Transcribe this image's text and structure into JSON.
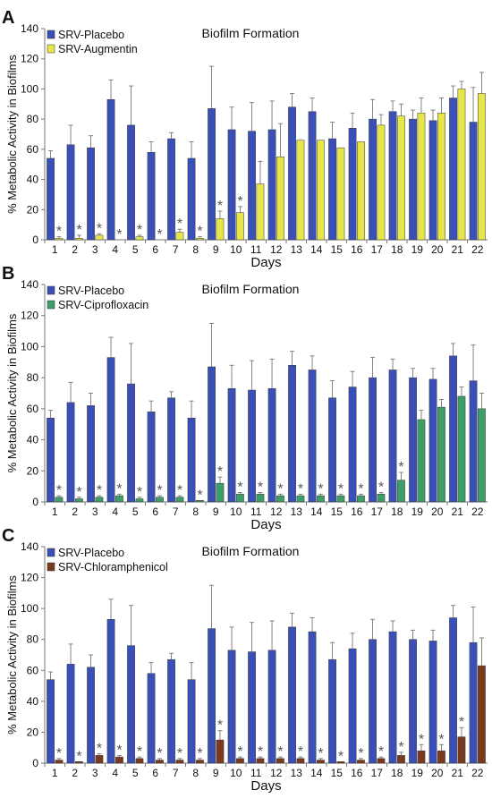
{
  "colors": {
    "placebo": "#3A50B8",
    "axis": "#777777",
    "error": "#777777",
    "text": "#111111"
  },
  "chart_data": [
    {
      "panel_label": "A",
      "type": "bar",
      "title": "Biofilm Formation",
      "xlabel": "Days",
      "ylabel": "% Metabolic Activity in Biofilms",
      "ylim": [
        0,
        140
      ],
      "yticks": [
        0,
        20,
        40,
        60,
        80,
        100,
        120,
        140
      ],
      "legend_placement": "top-left",
      "categories": [
        "1",
        "2",
        "3",
        "4",
        "5",
        "6",
        "7",
        "8",
        "9",
        "10",
        "11",
        "12",
        "13",
        "14",
        "15",
        "16",
        "17",
        "18",
        "19",
        "20",
        "21",
        "22"
      ],
      "series": [
        {
          "name": "SRV-Placebo",
          "color": "#3A50B8",
          "values": [
            54,
            63,
            61,
            93,
            76,
            58,
            67,
            54,
            87,
            73,
            72,
            73,
            88,
            85,
            67,
            74,
            80,
            85,
            80,
            79,
            94,
            78
          ],
          "errors": [
            5,
            13,
            8,
            13,
            26,
            7,
            4,
            11,
            28,
            15,
            19,
            19,
            9,
            9,
            11,
            10,
            13,
            7,
            6,
            7,
            8,
            23
          ]
        },
        {
          "name": "SRV-Augmentin",
          "color": "#E6E64A",
          "values": [
            1,
            1,
            3,
            0,
            2,
            0,
            5,
            1,
            14,
            18,
            37,
            55,
            66,
            66,
            61,
            65,
            76,
            82,
            84,
            84,
            100,
            97
          ],
          "errors": [
            1,
            2,
            1,
            0,
            1,
            0,
            2,
            1,
            5,
            4,
            15,
            22,
            0,
            0,
            0,
            0,
            7,
            8,
            10,
            10,
            5,
            14
          ]
        }
      ],
      "star_days": [
        1,
        2,
        3,
        4,
        5,
        6,
        7,
        8,
        9,
        10
      ]
    },
    {
      "panel_label": "B",
      "type": "bar",
      "title": "Biofilm Formation",
      "xlabel": "Days",
      "ylabel": "% Metabolic Activity in Biofilms",
      "ylim": [
        0,
        140
      ],
      "yticks": [
        0,
        20,
        40,
        60,
        80,
        100,
        120,
        140
      ],
      "legend_placement": "top-left",
      "categories": [
        "1",
        "2",
        "3",
        "4",
        "5",
        "6",
        "7",
        "8",
        "9",
        "10",
        "11",
        "12",
        "13",
        "14",
        "15",
        "16",
        "17",
        "18",
        "19",
        "20",
        "21",
        "22"
      ],
      "series": [
        {
          "name": "SRV-Placebo",
          "color": "#3A50B8",
          "values": [
            54,
            64,
            62,
            93,
            76,
            58,
            67,
            54,
            87,
            73,
            72,
            73,
            88,
            85,
            67,
            74,
            80,
            85,
            80,
            79,
            94,
            78
          ],
          "errors": [
            5,
            13,
            8,
            13,
            26,
            7,
            4,
            11,
            28,
            15,
            19,
            19,
            9,
            9,
            11,
            10,
            13,
            7,
            6,
            7,
            8,
            23
          ]
        },
        {
          "name": "SRV-Ciprofloxacin",
          "color": "#3E9E68",
          "values": [
            3,
            2,
            3,
            4,
            2,
            3,
            3,
            1,
            12,
            5,
            5,
            4,
            4,
            4,
            4,
            4,
            5,
            14,
            53,
            61,
            68,
            60
          ],
          "errors": [
            1,
            1,
            1,
            1,
            1,
            1,
            1,
            0,
            4,
            1,
            1,
            1,
            1,
            1,
            1,
            1,
            1,
            5,
            6,
            5,
            6,
            10
          ]
        }
      ],
      "star_days": [
        1,
        2,
        3,
        4,
        5,
        6,
        7,
        8,
        9,
        10,
        11,
        12,
        13,
        14,
        15,
        16,
        17,
        18
      ]
    },
    {
      "panel_label": "C",
      "type": "bar",
      "title": "Biofilm Formation",
      "xlabel": "Days",
      "ylabel": "% Metabolic Activity in Biofilms",
      "ylim": [
        0,
        140
      ],
      "yticks": [
        0,
        20,
        40,
        60,
        80,
        100,
        120,
        140
      ],
      "legend_placement": "top-left",
      "categories": [
        "1",
        "2",
        "3",
        "4",
        "5",
        "6",
        "7",
        "8",
        "9",
        "10",
        "11",
        "12",
        "13",
        "14",
        "15",
        "16",
        "17",
        "18",
        "19",
        "20",
        "21",
        "22"
      ],
      "series": [
        {
          "name": "SRV-Placebo",
          "color": "#3A50B8",
          "values": [
            54,
            64,
            62,
            93,
            76,
            58,
            67,
            54,
            87,
            73,
            72,
            73,
            88,
            85,
            67,
            74,
            80,
            85,
            80,
            79,
            94,
            78
          ],
          "errors": [
            5,
            13,
            8,
            13,
            26,
            7,
            4,
            11,
            28,
            15,
            19,
            19,
            9,
            9,
            11,
            10,
            13,
            7,
            6,
            7,
            8,
            23
          ]
        },
        {
          "name": "SRV-Chloramphenicol",
          "color": "#7A3A1E",
          "values": [
            2,
            1,
            5,
            4,
            3,
            2,
            2,
            2,
            15,
            3,
            3,
            3,
            3,
            2,
            1,
            2,
            3,
            5,
            8,
            8,
            17,
            63
          ],
          "errors": [
            1,
            0,
            1,
            1,
            1,
            1,
            1,
            1,
            6,
            1,
            1,
            1,
            1,
            1,
            0,
            1,
            1,
            2,
            4,
            4,
            6,
            18
          ]
        }
      ],
      "star_days": [
        1,
        2,
        3,
        4,
        5,
        6,
        7,
        8,
        9,
        10,
        11,
        12,
        13,
        14,
        15,
        16,
        17,
        18,
        19,
        20,
        21
      ]
    }
  ]
}
